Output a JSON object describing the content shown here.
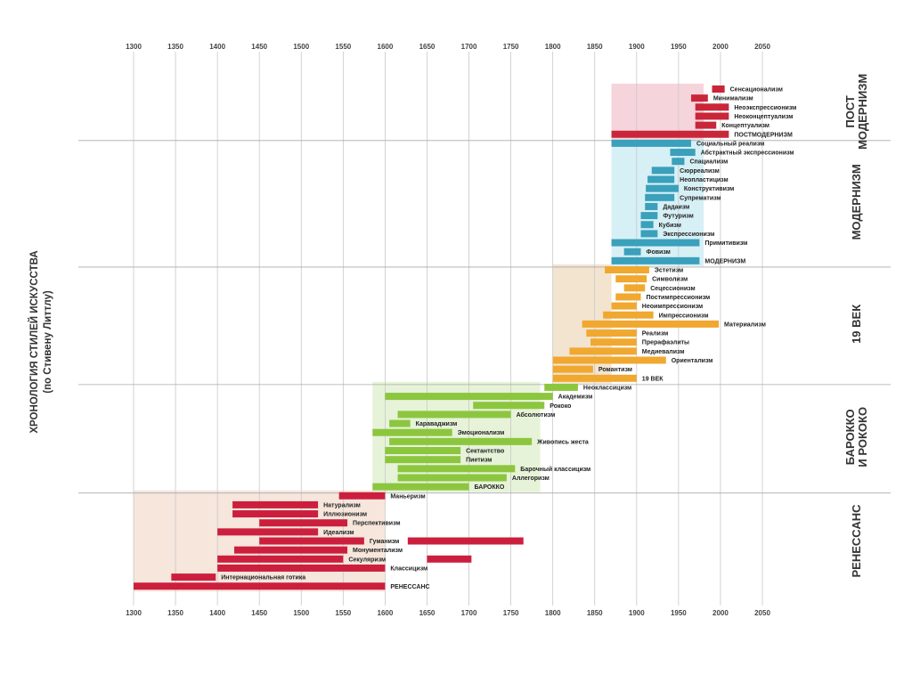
{
  "chart_data": {
    "type": "timeline",
    "title": "ХРОНОЛОГИЯ СТИЛЕЙ ИСКУССТВА",
    "subtitle": "(по Стивену Литтлу)",
    "x_ticks": [
      1300,
      1350,
      1400,
      1450,
      1500,
      1550,
      1600,
      1650,
      1700,
      1750,
      1800,
      1850,
      1900,
      1950,
      2000,
      2050
    ],
    "xlim": [
      1300,
      2050
    ],
    "colors": {
      "renaissance": "#cc1f3e",
      "baroque": "#8cc63f",
      "c19": "#f0a830",
      "modern": "#3aa0bb",
      "postmodern": "#c9263a",
      "renaissance_bg": "#f6e6dc",
      "baroque_bg": "#e6f3d8",
      "c19_bg": "#f3e4d0",
      "modern_bg": "#d6f0f6",
      "postmodern_bg": "#f6d4dc",
      "grid": "#c8c8c8",
      "divider": "#aaaaaa"
    },
    "eras": [
      {
        "name": "РЕНЕССАНС",
        "key": "renaissance",
        "bg_start": 1300,
        "bg_end": 1600
      },
      {
        "name": "БАРОККО И РОКОКО",
        "line1": "БАРОККО",
        "line2": "И РОКОКО",
        "key": "baroque",
        "bg_start": 1585,
        "bg_end": 1785
      },
      {
        "name": "19 ВЕК",
        "key": "c19",
        "bg_start": 1800,
        "bg_end": 1870
      },
      {
        "name": "МОДЕРНИЗМ",
        "key": "modern",
        "bg_start": 1870,
        "bg_end": 1980
      },
      {
        "name": "ПОСТ МОДЕРНИЗМ",
        "line1": "ПОСТ",
        "line2": "МОДЕРНИЗМ",
        "key": "postmodern",
        "bg_start": 1870,
        "bg_end": 1980
      }
    ],
    "styles": [
      {
        "label": "Сенсационализм",
        "segments": [
          [
            1990,
            2005
          ]
        ],
        "era": "postmodern"
      },
      {
        "label": "Минимализм",
        "segments": [
          [
            1965,
            1985
          ]
        ],
        "era": "postmodern"
      },
      {
        "label": "Неоэкспрессионизм",
        "segments": [
          [
            1970,
            2010
          ]
        ],
        "era": "postmodern"
      },
      {
        "label": "Неоконцептуализм",
        "segments": [
          [
            1970,
            2010
          ]
        ],
        "era": "postmodern"
      },
      {
        "label": "Концептуализм",
        "segments": [
          [
            1970,
            1995
          ]
        ],
        "era": "postmodern"
      },
      {
        "label": "ПОСТМОДЕРНИЗМ",
        "segments": [
          [
            1870,
            2010
          ]
        ],
        "era": "postmodern"
      },
      {
        "label": "Социальный реализм",
        "segments": [
          [
            1870,
            1965
          ]
        ],
        "era": "modern"
      },
      {
        "label": "Абстрактный экспрессионизм",
        "segments": [
          [
            1940,
            1970
          ]
        ],
        "era": "modern"
      },
      {
        "label": "Спациализм",
        "segments": [
          [
            1942,
            1957
          ]
        ],
        "era": "modern"
      },
      {
        "label": "Сюрреализм",
        "segments": [
          [
            1918,
            1945
          ]
        ],
        "era": "modern"
      },
      {
        "label": "Неопластицизм",
        "segments": [
          [
            1913,
            1945
          ]
        ],
        "era": "modern"
      },
      {
        "label": "Конструктивизм",
        "segments": [
          [
            1911,
            1950
          ]
        ],
        "era": "modern"
      },
      {
        "label": "Супрематизм",
        "segments": [
          [
            1910,
            1945
          ]
        ],
        "era": "modern"
      },
      {
        "label": "Дадаизм",
        "segments": [
          [
            1910,
            1925
          ]
        ],
        "era": "modern"
      },
      {
        "label": "Футуризм",
        "segments": [
          [
            1905,
            1925
          ]
        ],
        "era": "modern"
      },
      {
        "label": "Кубизм",
        "segments": [
          [
            1905,
            1920
          ]
        ],
        "era": "modern"
      },
      {
        "label": "Экспрессионизм",
        "segments": [
          [
            1905,
            1925
          ]
        ],
        "era": "modern"
      },
      {
        "label": "Примитивизм",
        "segments": [
          [
            1870,
            1975
          ]
        ],
        "era": "modern"
      },
      {
        "label": "Фовизм",
        "segments": [
          [
            1885,
            1905
          ]
        ],
        "era": "modern"
      },
      {
        "label": "МОДЕРНИЗМ",
        "segments": [
          [
            1870,
            1975
          ]
        ],
        "era": "modern"
      },
      {
        "label": "Эстетизм",
        "segments": [
          [
            1862,
            1915
          ]
        ],
        "era": "c19"
      },
      {
        "label": "Символизм",
        "segments": [
          [
            1875,
            1912
          ]
        ],
        "era": "c19"
      },
      {
        "label": "Сецессионизм",
        "segments": [
          [
            1885,
            1910
          ]
        ],
        "era": "c19"
      },
      {
        "label": "Постимпрессионизм",
        "segments": [
          [
            1875,
            1905
          ]
        ],
        "era": "c19"
      },
      {
        "label": "Неоимпрессионизм",
        "segments": [
          [
            1870,
            1900
          ]
        ],
        "era": "c19"
      },
      {
        "label": "Импрессионизм",
        "segments": [
          [
            1860,
            1920
          ]
        ],
        "era": "c19"
      },
      {
        "label": "Материализм",
        "segments": [
          [
            1835,
            1998
          ]
        ],
        "era": "c19"
      },
      {
        "label": "Реализм",
        "segments": [
          [
            1840,
            1900
          ]
        ],
        "era": "c19"
      },
      {
        "label": "Прерафаэлиты",
        "segments": [
          [
            1845,
            1900
          ]
        ],
        "era": "c19"
      },
      {
        "label": "Медиевализм",
        "segments": [
          [
            1820,
            1900
          ]
        ],
        "era": "c19"
      },
      {
        "label": "Ориентализм",
        "segments": [
          [
            1800,
            1935
          ]
        ],
        "era": "c19"
      },
      {
        "label": "Романтизм",
        "segments": [
          [
            1800,
            1848
          ]
        ],
        "era": "c19"
      },
      {
        "label": "19 ВЕК",
        "segments": [
          [
            1800,
            1900
          ]
        ],
        "era": "c19"
      },
      {
        "label": "Неоклассицизм",
        "segments": [
          [
            1790,
            1830
          ]
        ],
        "era": "baroque"
      },
      {
        "label": "Академизм",
        "segments": [
          [
            1600,
            1800
          ]
        ],
        "era": "baroque"
      },
      {
        "label": "Рококо",
        "segments": [
          [
            1705,
            1790
          ]
        ],
        "era": "baroque"
      },
      {
        "label": "Абсолютизм",
        "segments": [
          [
            1615,
            1750
          ]
        ],
        "era": "baroque"
      },
      {
        "label": "Караваджизм",
        "segments": [
          [
            1605,
            1630
          ]
        ],
        "era": "baroque"
      },
      {
        "label": "Эмоционализм",
        "segments": [
          [
            1585,
            1680
          ]
        ],
        "era": "baroque"
      },
      {
        "label": "Живопись жеста",
        "segments": [
          [
            1605,
            1775
          ]
        ],
        "era": "baroque"
      },
      {
        "label": "Сектантство",
        "segments": [
          [
            1600,
            1690
          ]
        ],
        "era": "baroque"
      },
      {
        "label": "Пиетизм",
        "segments": [
          [
            1600,
            1690
          ]
        ],
        "era": "baroque"
      },
      {
        "label": "Барочный классицизм",
        "segments": [
          [
            1615,
            1755
          ]
        ],
        "era": "baroque"
      },
      {
        "label": "Аллегоризм",
        "segments": [
          [
            1615,
            1745
          ]
        ],
        "era": "baroque"
      },
      {
        "label": "БАРОККО",
        "segments": [
          [
            1585,
            1700
          ]
        ],
        "era": "baroque"
      },
      {
        "label": "Маньеризм",
        "segments": [
          [
            1545,
            1600
          ]
        ],
        "era": "renaissance"
      },
      {
        "label": "Натурализм",
        "segments": [
          [
            1418,
            1520
          ]
        ],
        "era": "renaissance"
      },
      {
        "label": "Иллюзионизм",
        "segments": [
          [
            1418,
            1520
          ]
        ],
        "era": "renaissance"
      },
      {
        "label": "Перспективизм",
        "segments": [
          [
            1450,
            1555
          ]
        ],
        "era": "renaissance"
      },
      {
        "label": "Идеализм",
        "segments": [
          [
            1400,
            1520
          ]
        ],
        "era": "renaissance"
      },
      {
        "label": "Гуманизм",
        "segments": [
          [
            1450,
            1575
          ],
          [
            1627,
            1765
          ]
        ],
        "era": "renaissance"
      },
      {
        "label": "Монументализм",
        "segments": [
          [
            1420,
            1555
          ]
        ],
        "era": "renaissance"
      },
      {
        "label": "Секуляризм",
        "segments": [
          [
            1400,
            1550
          ],
          [
            1650,
            1703
          ]
        ],
        "era": "renaissance"
      },
      {
        "label": "Классицизм",
        "segments": [
          [
            1400,
            1600
          ]
        ],
        "era": "renaissance"
      },
      {
        "label": "Интернациональная готика",
        "segments": [
          [
            1345,
            1398
          ]
        ],
        "era": "renaissance"
      },
      {
        "label": "РЕНЕССАНС",
        "segments": [
          [
            1300,
            1600
          ]
        ],
        "era": "renaissance"
      }
    ]
  }
}
